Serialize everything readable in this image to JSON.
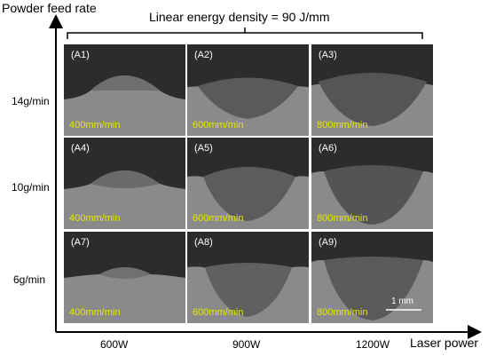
{
  "axes": {
    "y_label": "Powder feed rate",
    "x_label": "Laser power"
  },
  "title": "Linear energy density = 90 J/mm",
  "rows": [
    "14g/min",
    "10g/min",
    "6g/min"
  ],
  "columns": [
    "600W",
    "900W",
    "1200W"
  ],
  "panels": [
    {
      "tag": "(A1)",
      "speed": "400mm/min"
    },
    {
      "tag": "(A2)",
      "speed": "600mm/min"
    },
    {
      "tag": "(A3)",
      "speed": "800mm/min"
    },
    {
      "tag": "(A4)",
      "speed": "400mm/min"
    },
    {
      "tag": "(A5)",
      "speed": "600mm/min"
    },
    {
      "tag": "(A6)",
      "speed": "800mm/min"
    },
    {
      "tag": "(A7)",
      "speed": "400mm/min"
    },
    {
      "tag": "(A8)",
      "speed": "600mm/min"
    },
    {
      "tag": "(A9)",
      "speed": "800mm/min"
    }
  ],
  "scale_bar": "1 mm",
  "colors": {
    "speed_text": "#e8e800",
    "panel_bg": "#2a2a2a",
    "substrate": "#8a8a8a"
  }
}
